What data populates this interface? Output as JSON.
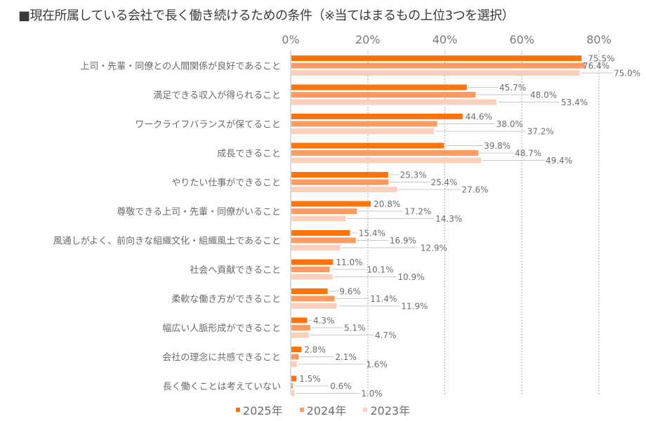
{
  "chart_data": {
    "type": "bar",
    "orientation": "horizontal",
    "title": "■現在所属している会社で長く働き続けるための条件（※当てはまるもの上位3つを選択）",
    "xlabel": "",
    "ylabel": "",
    "xlim": [
      0,
      80
    ],
    "x_ticks": [
      "0%",
      "20%",
      "40%",
      "60%",
      "80%"
    ],
    "grid": "vertical dotted",
    "legend_position": "bottom",
    "categories": [
      "上司・先輩・同僚との人間関係が良好であること",
      "満足できる収入が得られること",
      "ワークライフバランスが保てること",
      "成長できること",
      "やりたい仕事ができること",
      "尊敬できる上司・先輩・同僚がいること",
      "風通しがよく、前向きな組織文化・組織風土であること",
      "社会へ貢献できること",
      "柔軟な働き方ができること",
      "幅広い人脈形成ができること",
      "会社の理念に共感できること",
      "長く働くことは考えていない"
    ],
    "series": [
      {
        "name": "2025年",
        "color": "#ff7308",
        "values": [
          75.5,
          45.7,
          44.6,
          39.8,
          25.3,
          20.8,
          15.4,
          11.0,
          9.6,
          4.3,
          2.8,
          1.5
        ]
      },
      {
        "name": "2024年",
        "color": "#ff9a62",
        "values": [
          76.4,
          48.0,
          38.0,
          48.7,
          25.4,
          17.2,
          16.9,
          10.1,
          11.4,
          5.1,
          2.1,
          0.6
        ]
      },
      {
        "name": "2023年",
        "color": "#fcd0bb",
        "values": [
          75.0,
          53.4,
          37.2,
          49.4,
          27.6,
          14.3,
          12.9,
          10.9,
          11.9,
          4.7,
          1.6,
          1.0
        ]
      }
    ],
    "value_suffix": "%"
  }
}
